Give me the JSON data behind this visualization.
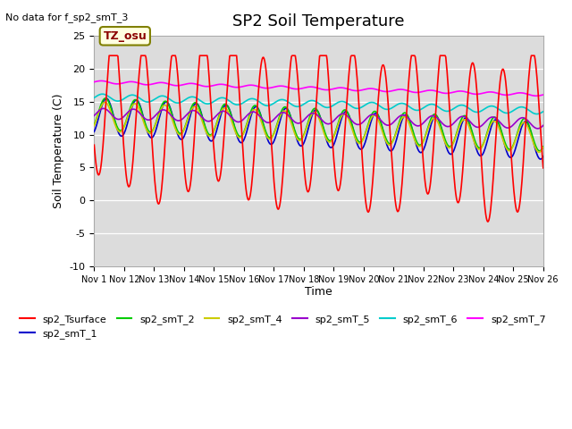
{
  "title": "SP2 Soil Temperature",
  "ylabel": "Soil Temperature (C)",
  "xlabel": "Time",
  "note": "No data for f_sp2_smT_3",
  "tz_label": "TZ_osu",
  "ylim": [
    -10,
    25
  ],
  "yticks": [
    -10,
    -5,
    0,
    5,
    10,
    15,
    20,
    25
  ],
  "xtick_labels": [
    "Nov 1",
    "Nov 12",
    "Nov 13",
    "Nov 14",
    "Nov 15",
    "Nov 16",
    "Nov 17",
    "Nov 18",
    "Nov 19",
    "Nov 20",
    "Nov 21",
    "Nov 22",
    "Nov 23",
    "Nov 24",
    "Nov 25",
    "Nov 26"
  ],
  "xtick_positions": [
    0,
    1,
    2,
    3,
    4,
    5,
    6,
    7,
    8,
    9,
    10,
    11,
    12,
    13,
    14,
    15
  ],
  "plot_bg": "#dcdcdc",
  "series": {
    "sp2_Tsurface": {
      "color": "#ff0000",
      "lw": 1.2
    },
    "sp2_smT_1": {
      "color": "#0000cc",
      "lw": 1.2
    },
    "sp2_smT_2": {
      "color": "#00cc00",
      "lw": 1.2
    },
    "sp2_smT_4": {
      "color": "#cccc00",
      "lw": 1.2
    },
    "sp2_smT_5": {
      "color": "#9900cc",
      "lw": 1.2
    },
    "sp2_smT_6": {
      "color": "#00cccc",
      "lw": 1.2
    },
    "sp2_smT_7": {
      "color": "#ff00ff",
      "lw": 1.2
    }
  }
}
